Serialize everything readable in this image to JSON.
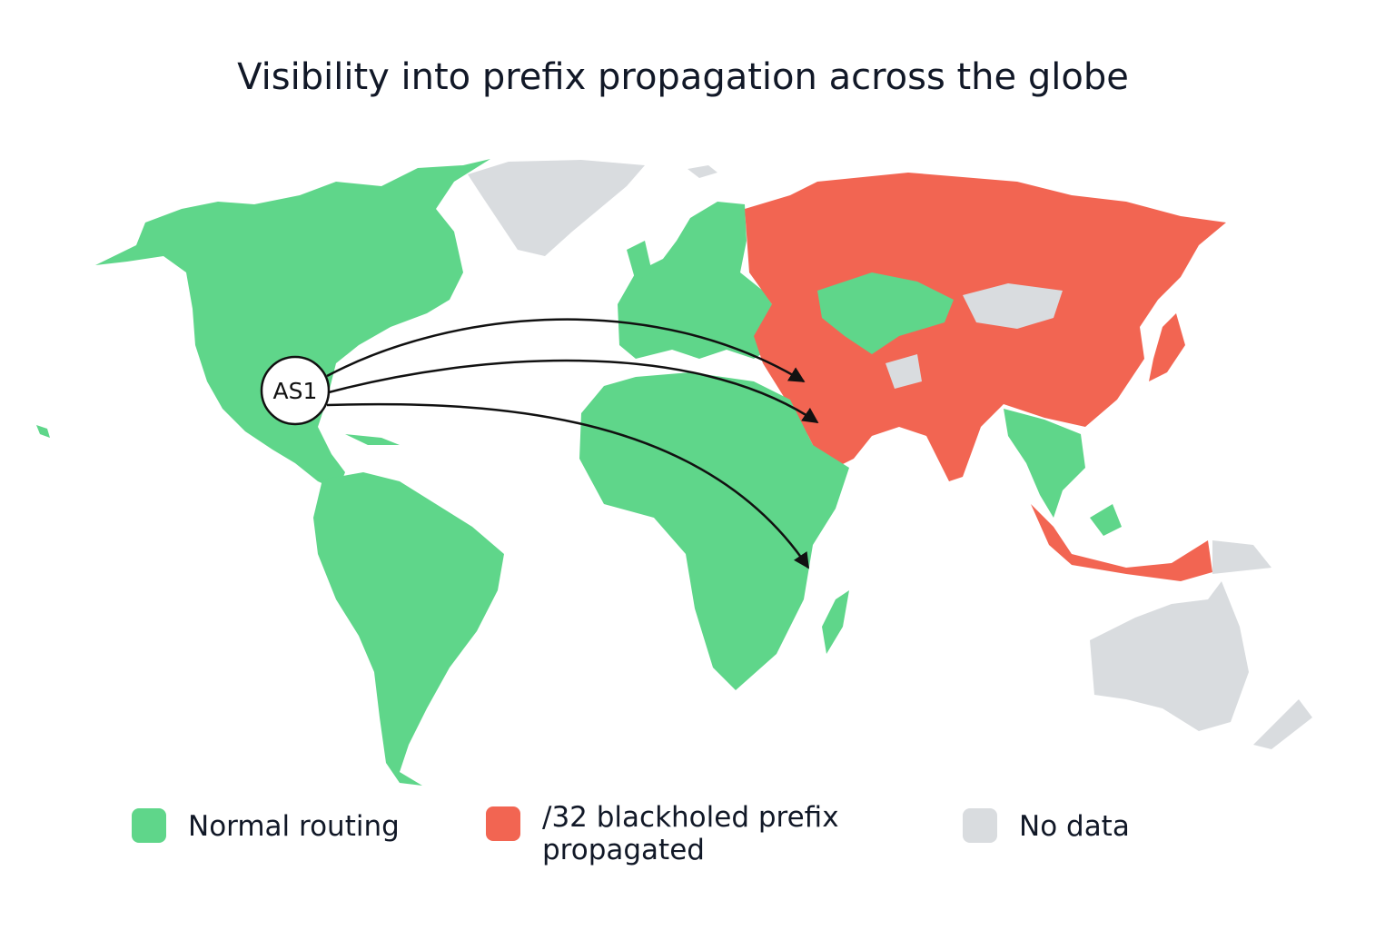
{
  "title": "Visibility into prefix propagation across the globe",
  "node": {
    "label": "AS1"
  },
  "legend": [
    {
      "label": "Normal routing"
    },
    {
      "label": "/32 blackholed prefix propagated"
    },
    {
      "label": "No data"
    }
  ]
}
